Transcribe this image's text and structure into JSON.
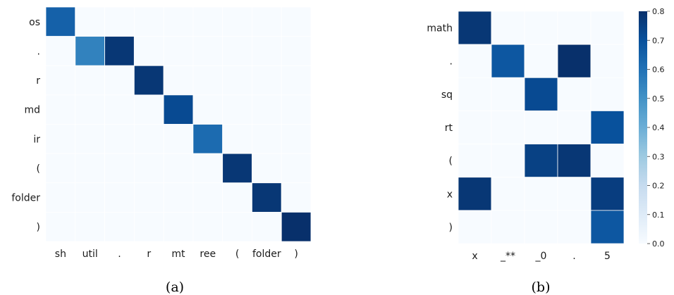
{
  "chart_data": [
    {
      "type": "heatmap",
      "caption": "(a)",
      "x_tick_labels": [
        "sh",
        "util",
        ".",
        "r",
        "mt",
        "ree",
        "(",
        "folder",
        ")"
      ],
      "y_tick_labels": [
        "os",
        ".",
        "r",
        "md",
        "ir",
        "(",
        "folder",
        ")"
      ],
      "values": [
        [
          0.65,
          0,
          0,
          0,
          0,
          0,
          0,
          0,
          0
        ],
        [
          0,
          0.55,
          0.78,
          0,
          0,
          0,
          0,
          0,
          0
        ],
        [
          0,
          0,
          0,
          0.78,
          0,
          0,
          0,
          0,
          0
        ],
        [
          0,
          0,
          0,
          0,
          0.72,
          0,
          0,
          0,
          0
        ],
        [
          0,
          0,
          0,
          0,
          0,
          0.62,
          0,
          0,
          0
        ],
        [
          0,
          0,
          0,
          0,
          0,
          0,
          0.78,
          0,
          0
        ],
        [
          0,
          0,
          0,
          0,
          0,
          0,
          0,
          0.78,
          0
        ],
        [
          0,
          0,
          0,
          0,
          0,
          0,
          0,
          0,
          0.8
        ]
      ],
      "colormap": "Blues",
      "vmin": 0,
      "vmax": 0.8
    },
    {
      "type": "heatmap",
      "caption": "(b)",
      "x_tick_labels": [
        "x",
        "_**",
        "_0",
        ".",
        "5"
      ],
      "y_tick_labels": [
        "math",
        ".",
        "sq",
        "rt",
        "(",
        "x",
        ")"
      ],
      "values": [
        [
          0.78,
          0,
          0,
          0,
          0
        ],
        [
          0,
          0.68,
          0,
          0.8,
          0
        ],
        [
          0,
          0,
          0.72,
          0,
          0
        ],
        [
          0,
          0,
          0,
          0,
          0.7
        ],
        [
          0,
          0,
          0.75,
          0.78,
          0
        ],
        [
          0.78,
          0,
          0,
          0,
          0.76
        ],
        [
          0,
          0,
          0,
          0,
          0.68
        ]
      ],
      "colormap": "Blues",
      "vmin": 0,
      "vmax": 0.8,
      "colorbar_ticks": [
        "0.0",
        "0.1",
        "0.2",
        "0.3",
        "0.4",
        "0.5",
        "0.6",
        "0.7",
        "0.8"
      ]
    }
  ]
}
